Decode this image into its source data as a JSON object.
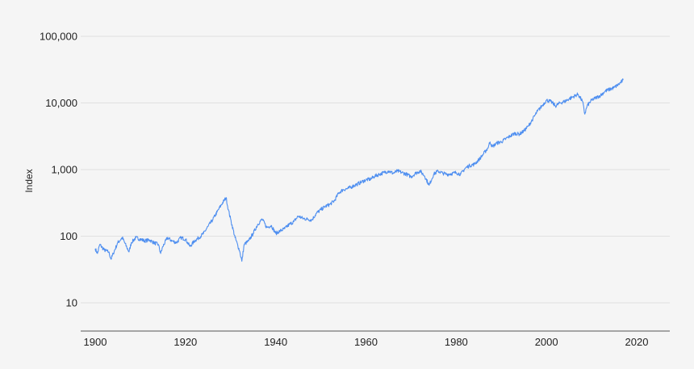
{
  "chart_data": {
    "type": "line",
    "title": "",
    "xlabel": "",
    "ylabel": "Index",
    "y_scale": "log",
    "xlim": [
      1897,
      2027
    ],
    "ylim": [
      4.5,
      150000
    ],
    "grid": true,
    "y_ticks": [
      10,
      100,
      1000,
      10000,
      100000
    ],
    "y_tick_labels": [
      "10",
      "100",
      "1,000",
      "10,000",
      "100,000"
    ],
    "x_ticks": [
      1900,
      1920,
      1940,
      1960,
      1980,
      2000,
      2020
    ],
    "x_tick_labels": [
      "1900",
      "1920",
      "1940",
      "1960",
      "1980",
      "2000",
      "2020"
    ],
    "colors": {
      "line": "#4f8ff0",
      "grid": "#e0e0e0",
      "axis": "#555555",
      "background": "#f5f5f5"
    },
    "series": [
      {
        "name": "",
        "x": [
          1900,
          1900.5,
          1901,
          1902,
          1903,
          1903.5,
          1904,
          1905,
          1906,
          1907,
          1907.5,
          1908,
          1909,
          1910,
          1911,
          1912,
          1913,
          1914,
          1914.5,
          1915,
          1916,
          1917,
          1918,
          1919,
          1920,
          1921,
          1922,
          1923,
          1924,
          1925,
          1926,
          1927,
          1928,
          1929,
          1929.5,
          1930,
          1931,
          1932,
          1932.5,
          1933,
          1934,
          1935,
          1936,
          1937,
          1938,
          1939,
          1940,
          1941,
          1942,
          1943,
          1944,
          1945,
          1946,
          1947,
          1948,
          1949,
          1950,
          1951,
          1952,
          1953,
          1954,
          1955,
          1956,
          1957,
          1958,
          1959,
          1960,
          1961,
          1962,
          1963,
          1964,
          1965,
          1966,
          1967,
          1968,
          1969,
          1970,
          1971,
          1972,
          1973,
          1974,
          1975,
          1976,
          1977,
          1978,
          1979,
          1980,
          1981,
          1982,
          1983,
          1984,
          1985,
          1986,
          1987,
          1987.5,
          1988,
          1989,
          1990,
          1991,
          1992,
          1993,
          1994,
          1995,
          1996,
          1997,
          1998,
          1999,
          2000,
          2001,
          2002,
          2003,
          2004,
          2005,
          2006,
          2007,
          2008,
          2008.5,
          2009,
          2010,
          2011,
          2012,
          2013,
          2014,
          2015,
          2016,
          2017
        ],
        "values": [
          65,
          55,
          75,
          62,
          58,
          45,
          55,
          80,
          95,
          68,
          58,
          80,
          95,
          90,
          85,
          88,
          80,
          75,
          55,
          70,
          95,
          85,
          80,
          95,
          90,
          70,
          85,
          95,
          110,
          140,
          175,
          230,
          300,
          380,
          250,
          180,
          95,
          60,
          42,
          75,
          85,
          110,
          150,
          180,
          135,
          145,
          110,
          120,
          130,
          150,
          165,
          200,
          185,
          180,
          175,
          220,
          250,
          280,
          300,
          340,
          450,
          500,
          520,
          560,
          600,
          650,
          700,
          720,
          800,
          850,
          900,
          950,
          880,
          950,
          900,
          850,
          780,
          880,
          950,
          800,
          580,
          850,
          950,
          880,
          850,
          870,
          900,
          850,
          1050,
          1150,
          1200,
          1400,
          1700,
          2100,
          2600,
          2200,
          2500,
          2600,
          2900,
          3200,
          3500,
          3400,
          3800,
          4500,
          5800,
          7500,
          9000,
          11000,
          10500,
          9000,
          10000,
          10500,
          11500,
          12500,
          13500,
          10500,
          6800,
          9000,
          11000,
          12000,
          13000,
          15000,
          16000,
          17000,
          19000,
          22000
        ]
      }
    ]
  }
}
